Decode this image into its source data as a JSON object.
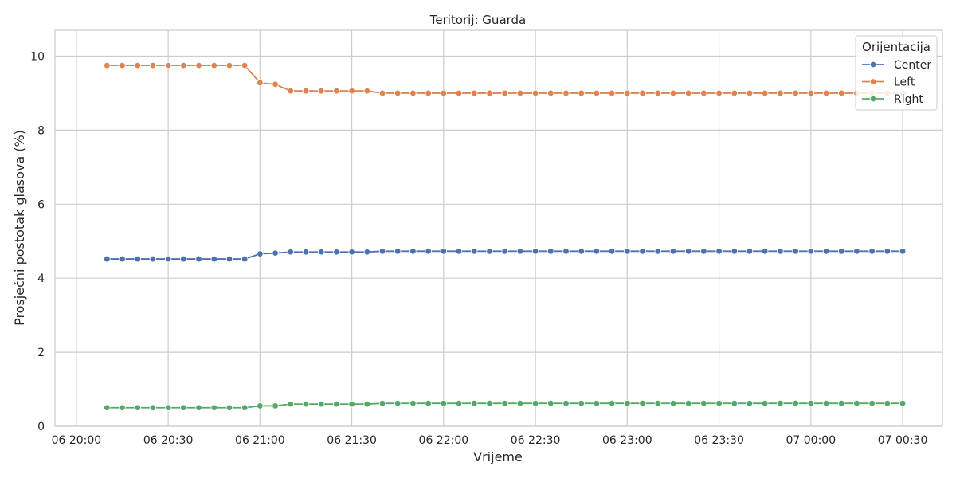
{
  "chart_data": {
    "type": "line",
    "title": "Teritorij: Guarda",
    "xlabel": "Vrijeme",
    "ylabel": "Prosječni postotak glasova (%)",
    "ylim": [
      0,
      10.7
    ],
    "yticks": [
      0,
      2,
      4,
      6,
      8,
      10
    ],
    "xlim_minutes": [
      -7,
      283
    ],
    "xticks": [
      {
        "label": "06 20:00",
        "t": 0
      },
      {
        "label": "06 20:30",
        "t": 30
      },
      {
        "label": "06 21:00",
        "t": 60
      },
      {
        "label": "06 21:30",
        "t": 90
      },
      {
        "label": "06 22:00",
        "t": 120
      },
      {
        "label": "06 22:30",
        "t": 150
      },
      {
        "label": "06 23:00",
        "t": 180
      },
      {
        "label": "06 23:30",
        "t": 210
      },
      {
        "label": "07 00:00",
        "t": 240
      },
      {
        "label": "07 00:30",
        "t": 270
      }
    ],
    "grid": true,
    "legend": {
      "title": "Orijentacija",
      "position": "top-right"
    },
    "x_start_time": "06 20:10",
    "x_step_minutes": 5,
    "series": [
      {
        "name": "Center",
        "color": "#4c72b0",
        "values": [
          4.52,
          4.52,
          4.52,
          4.52,
          4.52,
          4.52,
          4.52,
          4.52,
          4.52,
          4.52,
          4.66,
          4.68,
          4.71,
          4.71,
          4.71,
          4.71,
          4.71,
          4.71,
          4.73,
          4.73,
          4.73,
          4.73,
          4.73,
          4.73,
          4.73,
          4.73,
          4.73,
          4.73,
          4.73,
          4.73,
          4.73,
          4.73,
          4.73,
          4.73,
          4.73,
          4.73,
          4.73,
          4.73,
          4.73,
          4.73,
          4.73,
          4.73,
          4.73,
          4.73,
          4.73,
          4.73,
          4.73,
          4.73,
          4.73,
          4.73,
          4.73,
          4.73,
          4.73
        ]
      },
      {
        "name": "Left",
        "color": "#dd8452",
        "values": [
          9.75,
          9.75,
          9.75,
          9.75,
          9.75,
          9.75,
          9.75,
          9.75,
          9.75,
          9.75,
          9.28,
          9.24,
          9.06,
          9.06,
          9.06,
          9.06,
          9.06,
          9.06,
          9.0,
          9.0,
          9.0,
          9.0,
          9.0,
          9.0,
          9.0,
          9.0,
          9.0,
          9.0,
          9.0,
          9.0,
          9.0,
          9.0,
          9.0,
          9.0,
          9.0,
          9.0,
          9.0,
          9.0,
          9.0,
          9.0,
          9.0,
          9.0,
          9.0,
          9.0,
          9.0,
          9.0,
          9.0,
          9.0,
          9.0,
          9.0,
          9.0,
          9.0,
          9.0
        ]
      },
      {
        "name": "Right",
        "color": "#55a868",
        "values": [
          0.5,
          0.5,
          0.5,
          0.5,
          0.5,
          0.5,
          0.5,
          0.5,
          0.5,
          0.5,
          0.55,
          0.55,
          0.6,
          0.6,
          0.6,
          0.6,
          0.6,
          0.6,
          0.62,
          0.62,
          0.62,
          0.62,
          0.62,
          0.62,
          0.62,
          0.62,
          0.62,
          0.62,
          0.62,
          0.62,
          0.62,
          0.62,
          0.62,
          0.62,
          0.62,
          0.62,
          0.62,
          0.62,
          0.62,
          0.62,
          0.62,
          0.62,
          0.62,
          0.62,
          0.62,
          0.62,
          0.62,
          0.62,
          0.62,
          0.62,
          0.62,
          0.62,
          0.62
        ]
      }
    ]
  }
}
